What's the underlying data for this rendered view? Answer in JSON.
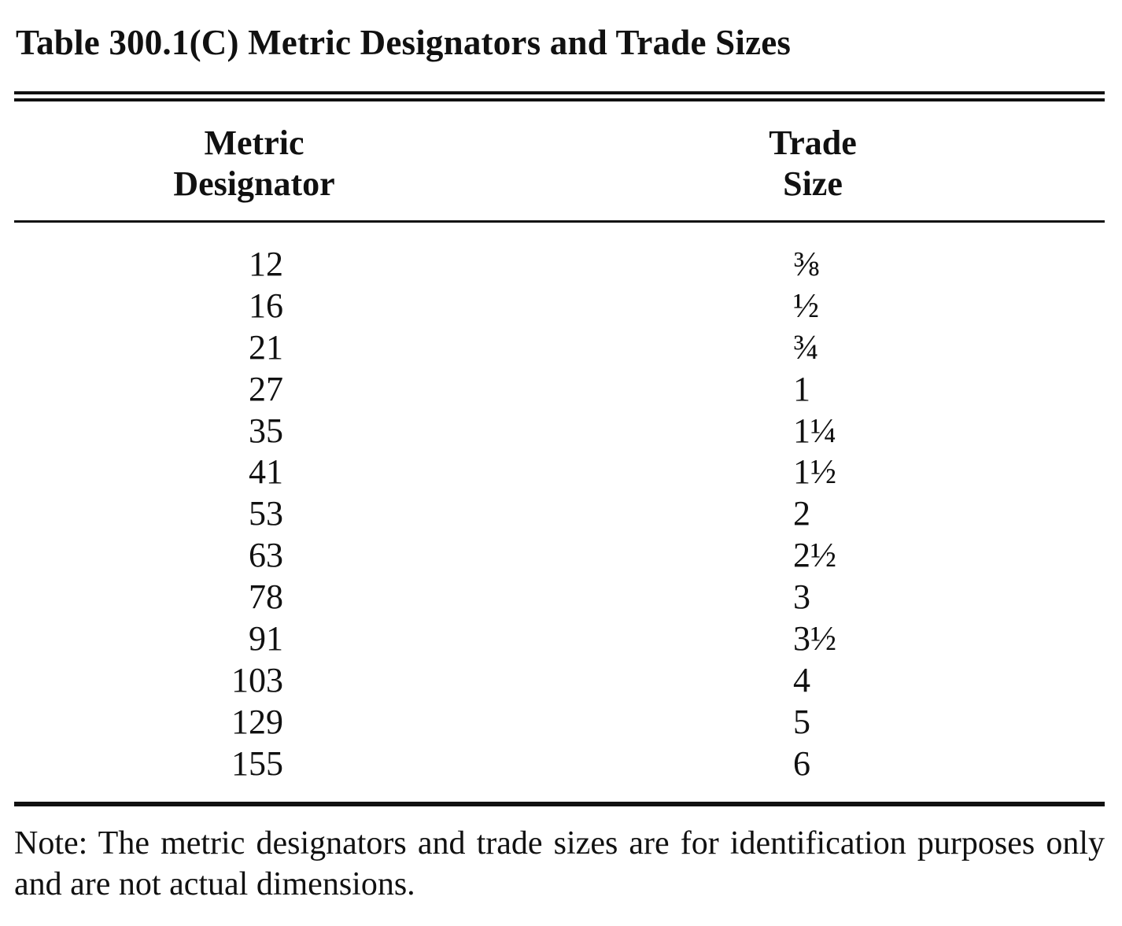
{
  "table": {
    "title": "Table 300.1(C)  Metric Designators and Trade Sizes",
    "headers": {
      "metric_line1": "Metric",
      "metric_line2": "Designator",
      "trade_line1": "Trade",
      "trade_line2": "Size"
    },
    "rows": [
      {
        "metric": "12",
        "trade": "⅜"
      },
      {
        "metric": "16",
        "trade": "½"
      },
      {
        "metric": "21",
        "trade": "¾"
      },
      {
        "metric": "27",
        "trade": "1"
      },
      {
        "metric": "35",
        "trade": "1¼"
      },
      {
        "metric": "41",
        "trade": "1½"
      },
      {
        "metric": "53",
        "trade": "2"
      },
      {
        "metric": "63",
        "trade": "2½"
      },
      {
        "metric": "78",
        "trade": "3"
      },
      {
        "metric": "91",
        "trade": "3½"
      },
      {
        "metric": "103",
        "trade": "4"
      },
      {
        "metric": "129",
        "trade": "5"
      },
      {
        "metric": "155",
        "trade": "6"
      }
    ],
    "note": "Note: The metric designators and trade sizes are for identification purposes only and are not actual dimensions."
  }
}
